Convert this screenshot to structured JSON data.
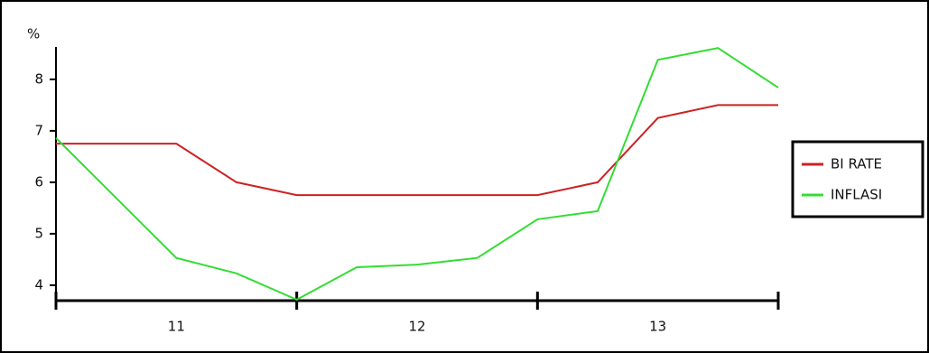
{
  "chart_data": {
    "type": "line",
    "y_label": "%",
    "x": [
      0,
      2,
      3,
      4,
      5,
      6,
      7,
      8,
      9,
      10,
      11,
      12
    ],
    "xlim": [
      0,
      12
    ],
    "xticks": [
      0,
      4,
      8,
      12
    ],
    "xgroup_labels": [
      "11",
      "12",
      "13"
    ],
    "ylim": [
      3.7,
      8.63
    ],
    "yticks": [
      4,
      5,
      6,
      7,
      8
    ],
    "series": [
      {
        "name": "BI RATE",
        "color": "#cc2222",
        "values": [
          6.75,
          6.75,
          6.0,
          5.75,
          5.75,
          5.75,
          5.75,
          5.75,
          6.0,
          7.25,
          7.5,
          7.5
        ]
      },
      {
        "name": "INFLASI",
        "color": "#33dd33",
        "values": [
          6.86,
          4.53,
          4.23,
          3.72,
          4.35,
          4.4,
          4.53,
          5.28,
          5.44,
          8.38,
          8.61,
          7.84
        ]
      }
    ],
    "legend": "right"
  }
}
